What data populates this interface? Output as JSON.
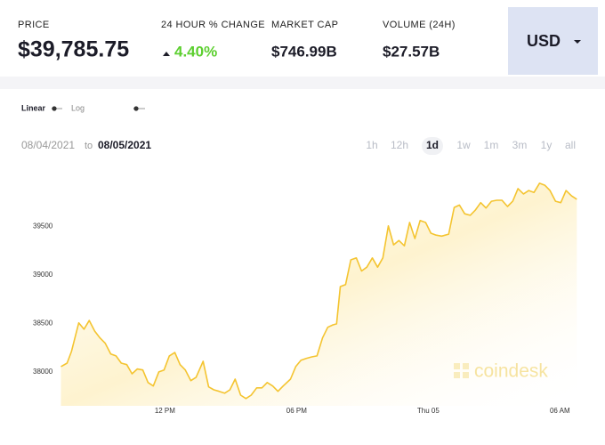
{
  "stats": [
    {
      "label": "PRICE",
      "value": "$39,785.75"
    },
    {
      "label": "24 HOUR % CHANGE",
      "value": "4.40%"
    },
    {
      "label": "MARKET CAP",
      "value": "$746.99B"
    },
    {
      "label": "VOLUME (24H)",
      "value": "$27.57B"
    }
  ],
  "currency": "USD",
  "scale_options": [
    "Linear",
    "Log"
  ],
  "date_range": {
    "from": "08/04/2021",
    "separator": "to",
    "to": "08/05/2021"
  },
  "ranges": [
    "1h",
    "12h",
    "1d",
    "1w",
    "1m",
    "3m",
    "1y",
    "all"
  ],
  "active_range": "1d",
  "watermark": "coindesk",
  "chart_data": {
    "type": "line",
    "x": [
      7.26,
      7.54,
      7.74,
      8.07,
      8.31,
      8.55,
      8.8,
      9.04,
      9.28,
      9.53,
      9.77,
      10.01,
      10.26,
      10.5,
      10.74,
      10.99,
      11.23,
      11.47,
      11.72,
      11.96,
      12.2,
      12.45,
      12.69,
      12.93,
      13.18,
      13.42,
      13.74,
      13.99,
      14.23,
      14.47,
      14.72,
      14.96,
      15.2,
      15.45,
      15.69,
      15.93,
      16.18,
      16.42,
      16.66,
      16.91,
      17.15,
      17.39,
      17.72,
      17.96,
      18.2,
      18.45,
      18.69,
      18.93,
      19.18,
      19.42,
      19.66,
      19.82,
      19.99,
      20.23,
      20.47,
      20.72,
      20.96,
      21.2,
      21.45,
      21.69,
      21.93,
      22.18,
      22.42,
      22.66,
      22.91,
      23.15,
      23.39,
      23.63,
      23.88,
      24.12,
      24.36,
      24.61,
      24.93,
      25.18,
      25.42,
      25.66,
      25.91,
      26.15,
      26.39,
      26.63,
      26.88,
      27.12,
      27.36,
      27.61,
      27.85,
      28.09,
      28.34,
      28.58,
      28.82,
      29.07,
      29.31,
      29.55,
      29.8,
      30.04,
      30.28,
      30.53,
      30.77
    ],
    "series": [
      {
        "name": "Price",
        "color": "#f4c430",
        "values": [
          38055,
          38090,
          38210,
          38505,
          38440,
          38530,
          38420,
          38350,
          38295,
          38185,
          38165,
          38090,
          38075,
          37980,
          38030,
          38020,
          37890,
          37855,
          38000,
          38020,
          38165,
          38200,
          38075,
          38020,
          37910,
          37945,
          38110,
          37845,
          37815,
          37800,
          37780,
          37815,
          37925,
          37760,
          37725,
          37760,
          37835,
          37835,
          37890,
          37855,
          37800,
          37855,
          37925,
          38055,
          38120,
          38140,
          38155,
          38165,
          38350,
          38460,
          38485,
          38495,
          38880,
          38900,
          39155,
          39175,
          39040,
          39080,
          39175,
          39080,
          39175,
          39505,
          39310,
          39355,
          39300,
          39540,
          39375,
          39560,
          39540,
          39430,
          39410,
          39400,
          39420,
          39695,
          39720,
          39630,
          39615,
          39670,
          39745,
          39690,
          39760,
          39770,
          39770,
          39705,
          39760,
          39890,
          39835,
          39870,
          39850,
          39945,
          39925,
          39870,
          39760,
          39745,
          39870,
          39815,
          39780
        ]
      }
    ],
    "xlim": [
      7.2,
      31.0
    ],
    "xticks": [
      {
        "value": 12,
        "label": "12 PM"
      },
      {
        "value": 18,
        "label": "06 PM"
      },
      {
        "value": 24,
        "label": "Thu 05"
      },
      {
        "value": 30,
        "label": "06 AM"
      }
    ],
    "ylim": [
      37650,
      40100
    ],
    "yticks": [
      38000,
      38500,
      39000,
      39500
    ],
    "grid": false
  }
}
